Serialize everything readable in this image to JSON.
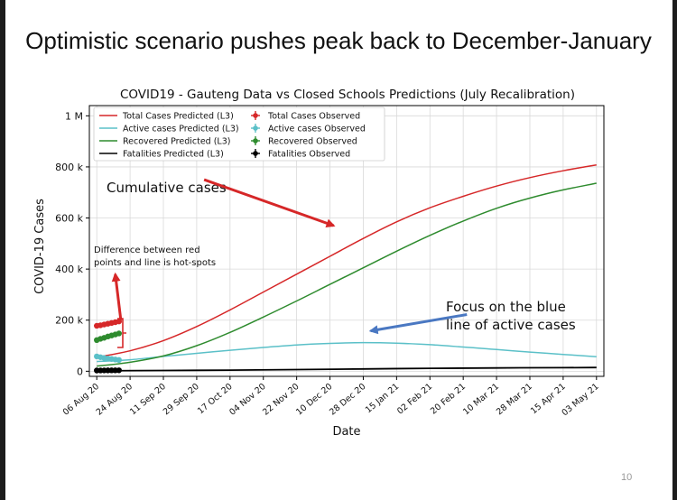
{
  "slide": {
    "title": "Optimistic scenario pushes peak back to December-January",
    "page_number": "10"
  },
  "chart_data": {
    "type": "line",
    "title": "COVID19 - Gauteng Data vs Closed Schools Predictions (July Recalibration)",
    "xlabel": "Date",
    "ylabel": "COVID-19 Cases",
    "ylim": [
      -20000,
      1040000
    ],
    "xlim": [
      -4,
      274
    ],
    "x_ticks": [
      {
        "day": 0,
        "label": "06 Aug 20"
      },
      {
        "day": 18,
        "label": "24 Aug 20"
      },
      {
        "day": 36,
        "label": "11 Sep 20"
      },
      {
        "day": 54,
        "label": "29 Sep 20"
      },
      {
        "day": 72,
        "label": "17 Oct 20"
      },
      {
        "day": 90,
        "label": "04 Nov 20"
      },
      {
        "day": 108,
        "label": "22 Nov 20"
      },
      {
        "day": 126,
        "label": "10 Dec 20"
      },
      {
        "day": 144,
        "label": "28 Dec 20"
      },
      {
        "day": 162,
        "label": "15 Jan 21"
      },
      {
        "day": 180,
        "label": "02 Feb 21"
      },
      {
        "day": 198,
        "label": "20 Feb 21"
      },
      {
        "day": 216,
        "label": "10 Mar 21"
      },
      {
        "day": 234,
        "label": "28 Mar 21"
      },
      {
        "day": 252,
        "label": "15 Apr 21"
      },
      {
        "day": 270,
        "label": "03 May 21"
      }
    ],
    "y_ticks": [
      {
        "value": 0,
        "label": "0"
      },
      {
        "value": 200000,
        "label": "200 k"
      },
      {
        "value": 400000,
        "label": "400 k"
      },
      {
        "value": 600000,
        "label": "600 k"
      },
      {
        "value": 800000,
        "label": "800 k"
      },
      {
        "value": 1000000,
        "label": "1 M"
      }
    ],
    "grid": true,
    "legend_position": "top-left",
    "series": [
      {
        "name": "Total Cases Predicted (L3)",
        "kind": "predicted",
        "color": "#d62728",
        "points": [
          [
            0,
            55000
          ],
          [
            18,
            80000
          ],
          [
            36,
            120000
          ],
          [
            54,
            175000
          ],
          [
            72,
            240000
          ],
          [
            90,
            310000
          ],
          [
            108,
            380000
          ],
          [
            126,
            450000
          ],
          [
            144,
            520000
          ],
          [
            162,
            585000
          ],
          [
            180,
            640000
          ],
          [
            198,
            685000
          ],
          [
            216,
            725000
          ],
          [
            234,
            758000
          ],
          [
            252,
            785000
          ],
          [
            270,
            808000
          ]
        ]
      },
      {
        "name": "Active cases Predicted (L3)",
        "kind": "predicted",
        "color": "#5bc0c8",
        "points": [
          [
            0,
            38000
          ],
          [
            18,
            45000
          ],
          [
            36,
            58000
          ],
          [
            54,
            70000
          ],
          [
            72,
            82000
          ],
          [
            90,
            93000
          ],
          [
            108,
            103000
          ],
          [
            126,
            109000
          ],
          [
            144,
            112000
          ],
          [
            162,
            110000
          ],
          [
            180,
            104000
          ],
          [
            198,
            95000
          ],
          [
            216,
            85000
          ],
          [
            234,
            75000
          ],
          [
            252,
            66000
          ],
          [
            270,
            57000
          ]
        ]
      },
      {
        "name": "Recovered Predicted (L3)",
        "kind": "predicted",
        "color": "#2e8b2e",
        "points": [
          [
            0,
            20000
          ],
          [
            18,
            35000
          ],
          [
            36,
            60000
          ],
          [
            54,
            100000
          ],
          [
            72,
            152000
          ],
          [
            90,
            212000
          ],
          [
            108,
            275000
          ],
          [
            126,
            340000
          ],
          [
            144,
            405000
          ],
          [
            162,
            470000
          ],
          [
            180,
            532000
          ],
          [
            198,
            588000
          ],
          [
            216,
            638000
          ],
          [
            234,
            678000
          ],
          [
            252,
            710000
          ],
          [
            270,
            736000
          ]
        ]
      },
      {
        "name": "Fatalities Predicted (L3)",
        "kind": "predicted",
        "color": "#000000",
        "points": [
          [
            0,
            2000
          ],
          [
            36,
            3000
          ],
          [
            72,
            4500
          ],
          [
            108,
            6500
          ],
          [
            144,
            9000
          ],
          [
            180,
            11500
          ],
          [
            216,
            13000
          ],
          [
            252,
            14000
          ],
          [
            270,
            14500
          ]
        ]
      },
      {
        "name": "Total Cases Observed",
        "kind": "observed",
        "color": "#d62728",
        "points": [
          [
            0,
            178000
          ],
          [
            2,
            180000
          ],
          [
            4,
            183000
          ],
          [
            6,
            186000
          ],
          [
            8,
            189000
          ],
          [
            10,
            192000
          ],
          [
            12,
            195000
          ]
        ]
      },
      {
        "name": "Active cases Observed",
        "kind": "observed",
        "color": "#5bc0c8",
        "points": [
          [
            0,
            58000
          ],
          [
            2,
            55000
          ],
          [
            4,
            52000
          ],
          [
            6,
            50000
          ],
          [
            8,
            48000
          ],
          [
            10,
            46000
          ],
          [
            12,
            44000
          ]
        ]
      },
      {
        "name": "Recovered Observed",
        "kind": "observed",
        "color": "#2e8b2e",
        "points": [
          [
            0,
            122000
          ],
          [
            2,
            127000
          ],
          [
            4,
            131000
          ],
          [
            6,
            136000
          ],
          [
            8,
            140000
          ],
          [
            10,
            144000
          ],
          [
            12,
            148000
          ]
        ]
      },
      {
        "name": "Fatalities Observed",
        "kind": "observed",
        "color": "#000000",
        "points": [
          [
            0,
            3000
          ],
          [
            2,
            3100
          ],
          [
            4,
            3300
          ],
          [
            6,
            3400
          ],
          [
            8,
            3500
          ],
          [
            10,
            3600
          ],
          [
            12,
            3700
          ]
        ]
      }
    ],
    "annotations": [
      {
        "id": "cumulative",
        "text": "Cumulative cases",
        "color": "#d62728",
        "arrow_from": [
          58,
          750000
        ],
        "arrow_to": [
          128,
          570000
        ]
      },
      {
        "id": "focus",
        "text": [
          "Focus on the blue",
          "line of active cases"
        ],
        "color": "#4a78c2",
        "arrow_from": [
          200,
          222000
        ],
        "arrow_to": [
          148,
          158000
        ]
      },
      {
        "id": "difference",
        "text": [
          "Difference between red",
          "points and line is hot-spots"
        ],
        "color": "#d62728",
        "arrow_from": [
          13,
          200000
        ],
        "arrow_to": [
          10,
          380000
        ]
      }
    ]
  }
}
